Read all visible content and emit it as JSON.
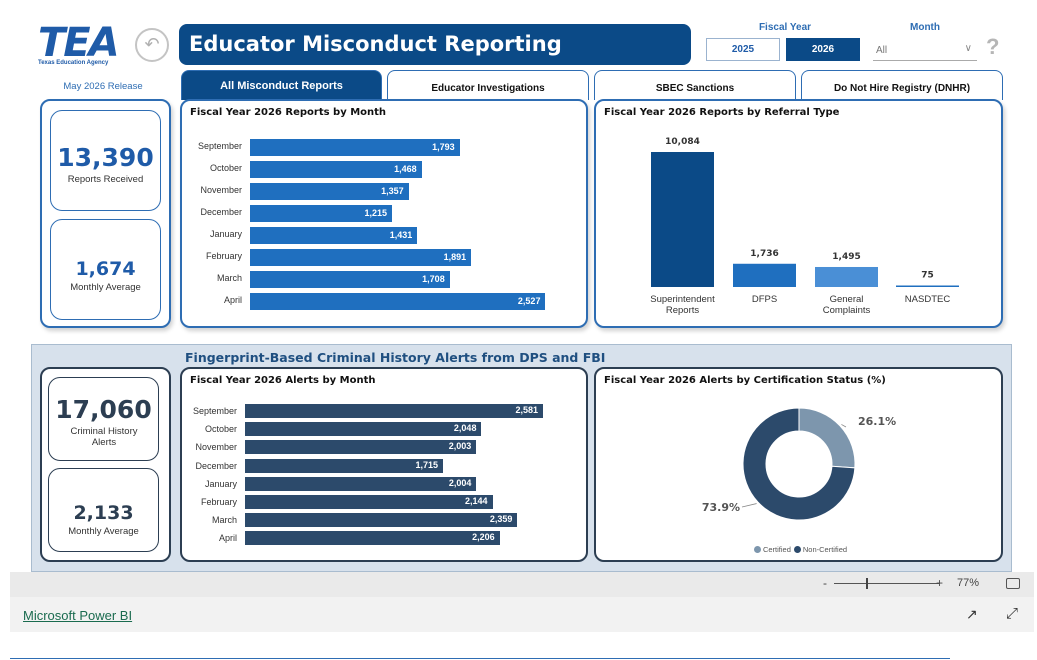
{
  "header": {
    "logo_text": "TEA",
    "logo_sub": "Texas Education Agency",
    "title": "Educator Misconduct Reporting",
    "fiscal_year_label": "Fiscal Year",
    "year_options": [
      "2025",
      "2026"
    ],
    "selected_year": "2026",
    "month_label": "Month",
    "month_value": "All",
    "back_icon": "back-arrow-icon",
    "help_text": "?"
  },
  "release_label": "May 2026 Release",
  "tabs": [
    {
      "label": "All Misconduct Reports",
      "active": true
    },
    {
      "label": "Educator Investigations",
      "active": false
    },
    {
      "label": "SBEC Sanctions",
      "active": false
    },
    {
      "label": "Do Not Hire Registry (DNHR)",
      "active": false
    }
  ],
  "kpis_top": [
    {
      "value": "13,390",
      "label": "Reports Received"
    },
    {
      "value": "1,674",
      "label": "Monthly Average"
    }
  ],
  "kpis_bottom": [
    {
      "value": "17,060",
      "label": "Criminal History Alerts"
    },
    {
      "value": "2,133",
      "label": "Monthly Average"
    }
  ],
  "section_title": "Fingerprint-Based Criminal History Alerts from DPS and FBI",
  "colors": {
    "primary": "#0b4a87",
    "bar_blue": "#1f6fbf",
    "bar_mid": "#4a8fd6",
    "bar_dark": "#2c4a6b",
    "donut_light": "#7d96ad",
    "donut_dark": "#2c4a6b"
  },
  "chart_data": [
    {
      "type": "bar",
      "orientation": "horizontal",
      "title": "Fiscal Year 2026 Reports by Month",
      "categories": [
        "September",
        "October",
        "November",
        "December",
        "January",
        "February",
        "March",
        "April"
      ],
      "values": [
        1793,
        1468,
        1357,
        1215,
        1431,
        1891,
        1708,
        2527
      ],
      "labels": [
        "1,793",
        "1,468",
        "1,357",
        "1,215",
        "1,431",
        "1,891",
        "1,708",
        "2,527"
      ],
      "xlim": [
        0,
        2600
      ]
    },
    {
      "type": "bar",
      "title": "Fiscal Year 2026 Reports by Referral Type",
      "categories": [
        "Superintendent Reports",
        "DFPS",
        "General Complaints",
        "NASDTEC"
      ],
      "values": [
        10084,
        1736,
        1495,
        75
      ],
      "labels": [
        "10,084",
        "1,736",
        "1,495",
        "75"
      ],
      "ylim": [
        0,
        10084
      ]
    },
    {
      "type": "bar",
      "orientation": "horizontal",
      "title": "Fiscal Year 2026 Alerts by Month",
      "categories": [
        "September",
        "October",
        "November",
        "December",
        "January",
        "February",
        "March",
        "April"
      ],
      "values": [
        2581,
        2048,
        2003,
        1715,
        2004,
        2144,
        2359,
        2206
      ],
      "labels": [
        "2,581",
        "2,048",
        "2,003",
        "1,715",
        "2,004",
        "2,144",
        "2,359",
        "2,206"
      ],
      "xlim": [
        0,
        2581
      ]
    },
    {
      "type": "pie",
      "donut": true,
      "title": "Fiscal Year 2026 Alerts by Certification Status (%)",
      "categories": [
        "Certified",
        "Non-Certified"
      ],
      "values": [
        26.1,
        73.9
      ],
      "labels": [
        "26.1%",
        "73.9%"
      ]
    }
  ],
  "footer": {
    "zoom_minus": "-",
    "zoom_plus": "+",
    "zoom_level": "77%",
    "zoom_value": 0.3,
    "brand": "Microsoft Power BI"
  }
}
